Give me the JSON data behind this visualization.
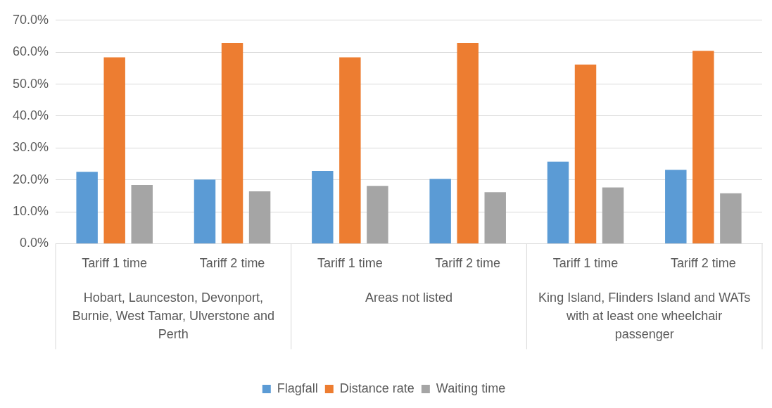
{
  "chart_data": {
    "type": "bar",
    "categories": [
      "Tariff 1 time",
      "Tariff 2 time",
      "Tariff 1 time",
      "Tariff 2 time",
      "Tariff 1 time",
      "Tariff 2 time"
    ],
    "annotations": [
      "Hobart, Launceston, Devonport, Burnie, West Tamar, Ulverstone and Perth",
      "Areas not listed",
      "King Island, Flinders Island and WATs with at least one wheelchair passenger"
    ],
    "series": [
      {
        "name": "Flagfall",
        "color": "#5b9bd5",
        "values": [
          22.5,
          20.1,
          22.8,
          20.3,
          25.7,
          23.1
        ]
      },
      {
        "name": "Distance rate",
        "color": "#ed7d31",
        "values": [
          58.4,
          62.9,
          58.4,
          62.9,
          56.1,
          60.4
        ]
      },
      {
        "name": "Waiting time",
        "color": "#a5a5a5",
        "values": [
          18.4,
          16.4,
          18.1,
          16.1,
          17.6,
          15.8
        ]
      }
    ],
    "ylim": [
      0,
      70
    ],
    "yticks": [
      {
        "value": 0,
        "label": "0.0%"
      },
      {
        "value": 10,
        "label": "10.0%"
      },
      {
        "value": 20,
        "label": "20.0%"
      },
      {
        "value": 30,
        "label": "30.0%"
      },
      {
        "value": 40,
        "label": "40.0%"
      },
      {
        "value": 50,
        "label": "50.0%"
      },
      {
        "value": 60,
        "label": "60.0%"
      },
      {
        "value": 70,
        "label": "70.0%"
      }
    ],
    "grid": "y",
    "legend": "bottom"
  }
}
